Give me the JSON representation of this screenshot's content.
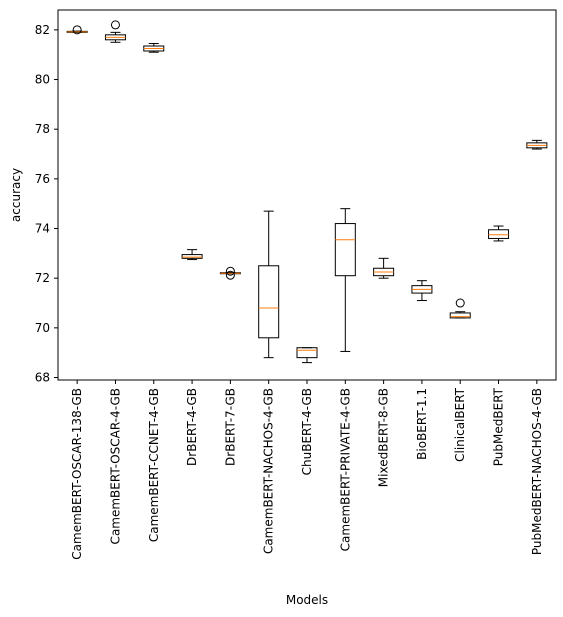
{
  "chart_data": {
    "type": "box",
    "title": "",
    "xlabel": "Models",
    "ylabel": "accuracy",
    "ylim": [
      67.9,
      82.8
    ],
    "yticks": [
      68,
      70,
      72,
      74,
      76,
      78,
      80,
      82
    ],
    "grid": false,
    "colors": {
      "box": "#000000",
      "median": "#ff7f0e",
      "background": "#ffffff"
    },
    "categories": [
      "CamemBERT-OSCAR-138-GB",
      "CamemBERT-OSCAR-4-GB",
      "CamemBERT-CCNET-4-GB",
      "DrBERT-4-GB",
      "DrBERT-7-GB",
      "CamemBERT-NACHOS-4-GB",
      "ChuBERT-4-GB",
      "CamemBERT-PRIVATE-4-GB",
      "MixedBERT-8-GB",
      "BioBERT-1.1",
      "ClinicalBERT",
      "PubMedBERT",
      "PubMedBERT-NACHOS-4-GB"
    ],
    "boxes": [
      {
        "whisker_low": 81.9,
        "q1": 81.9,
        "median": 81.92,
        "q3": 81.94,
        "whisker_high": 81.95,
        "outliers": [
          82.0
        ]
      },
      {
        "whisker_low": 81.5,
        "q1": 81.6,
        "median": 81.7,
        "q3": 81.8,
        "whisker_high": 81.9,
        "outliers": [
          82.2
        ]
      },
      {
        "whisker_low": 81.1,
        "q1": 81.15,
        "median": 81.25,
        "q3": 81.35,
        "whisker_high": 81.45,
        "outliers": []
      },
      {
        "whisker_low": 72.75,
        "q1": 72.8,
        "median": 72.85,
        "q3": 72.95,
        "whisker_high": 73.15,
        "outliers": []
      },
      {
        "whisker_low": 72.2,
        "q1": 72.2,
        "median": 72.2,
        "q3": 72.22,
        "whisker_high": 72.23,
        "outliers": [
          72.12,
          72.28
        ]
      },
      {
        "whisker_low": 68.8,
        "q1": 69.6,
        "median": 70.8,
        "q3": 72.5,
        "whisker_high": 74.7,
        "outliers": []
      },
      {
        "whisker_low": 68.6,
        "q1": 68.8,
        "median": 69.1,
        "q3": 69.2,
        "whisker_high": 69.2,
        "outliers": []
      },
      {
        "whisker_low": 69.05,
        "q1": 72.1,
        "median": 73.55,
        "q3": 74.2,
        "whisker_high": 74.8,
        "outliers": []
      },
      {
        "whisker_low": 72.0,
        "q1": 72.1,
        "median": 72.25,
        "q3": 72.4,
        "whisker_high": 72.8,
        "outliers": []
      },
      {
        "whisker_low": 71.1,
        "q1": 71.4,
        "median": 71.55,
        "q3": 71.7,
        "whisker_high": 71.9,
        "outliers": []
      },
      {
        "whisker_low": 70.4,
        "q1": 70.4,
        "median": 70.45,
        "q3": 70.6,
        "whisker_high": 70.65,
        "outliers": [
          71.0
        ]
      },
      {
        "whisker_low": 73.5,
        "q1": 73.6,
        "median": 73.75,
        "q3": 73.95,
        "whisker_high": 74.1,
        "outliers": []
      },
      {
        "whisker_low": 77.2,
        "q1": 77.25,
        "median": 77.35,
        "q3": 77.45,
        "whisker_high": 77.55,
        "outliers": []
      }
    ]
  }
}
